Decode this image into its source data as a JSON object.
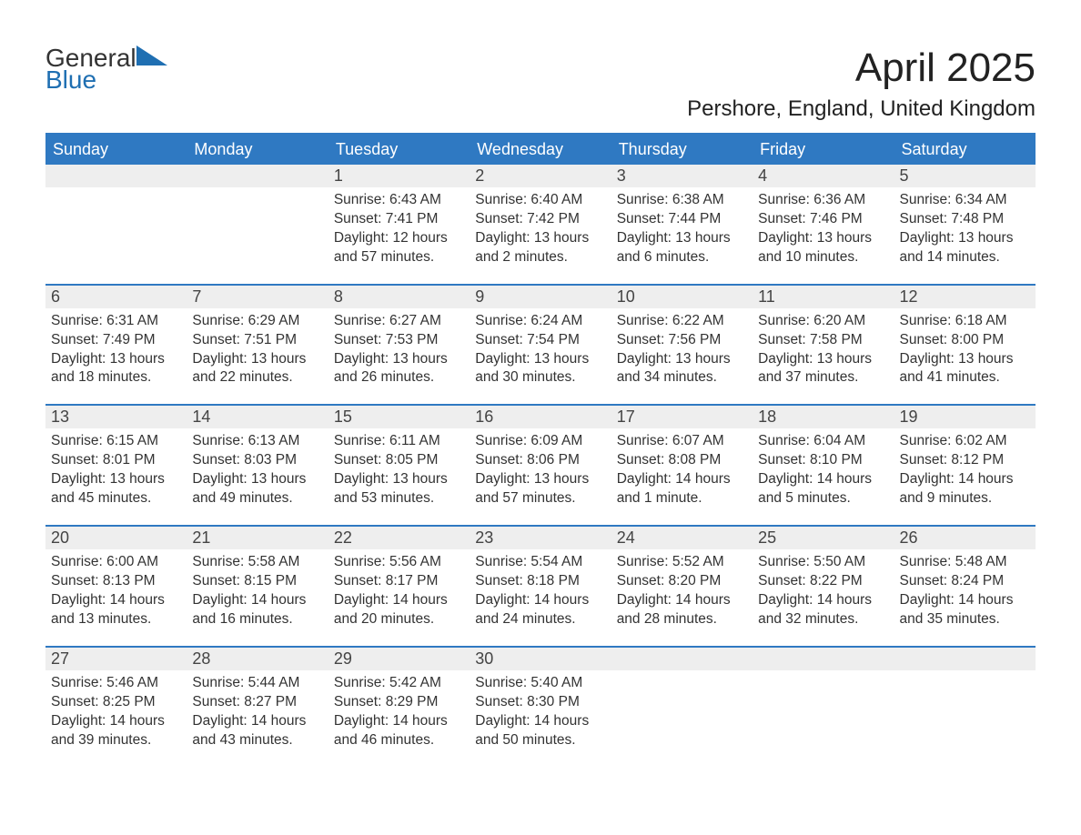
{
  "logo": {
    "line1": "General",
    "line2": "Blue"
  },
  "title": "April 2025",
  "location": "Pershore, England, United Kingdom",
  "colors": {
    "header_bg": "#2f79c2",
    "header_text": "#ffffff",
    "daynum_bg": "#eeeeee",
    "body_text": "#333333",
    "rule": "#2f79c2",
    "logo_accent": "#1f6fb2",
    "page_bg": "#ffffff"
  },
  "day_labels": [
    "Sunday",
    "Monday",
    "Tuesday",
    "Wednesday",
    "Thursday",
    "Friday",
    "Saturday"
  ],
  "weeks": [
    [
      {
        "n": "",
        "sunrise": "",
        "sunset": "",
        "daylight1": "",
        "daylight2": ""
      },
      {
        "n": "",
        "sunrise": "",
        "sunset": "",
        "daylight1": "",
        "daylight2": ""
      },
      {
        "n": "1",
        "sunrise": "Sunrise: 6:43 AM",
        "sunset": "Sunset: 7:41 PM",
        "daylight1": "Daylight: 12 hours",
        "daylight2": "and 57 minutes."
      },
      {
        "n": "2",
        "sunrise": "Sunrise: 6:40 AM",
        "sunset": "Sunset: 7:42 PM",
        "daylight1": "Daylight: 13 hours",
        "daylight2": "and 2 minutes."
      },
      {
        "n": "3",
        "sunrise": "Sunrise: 6:38 AM",
        "sunset": "Sunset: 7:44 PM",
        "daylight1": "Daylight: 13 hours",
        "daylight2": "and 6 minutes."
      },
      {
        "n": "4",
        "sunrise": "Sunrise: 6:36 AM",
        "sunset": "Sunset: 7:46 PM",
        "daylight1": "Daylight: 13 hours",
        "daylight2": "and 10 minutes."
      },
      {
        "n": "5",
        "sunrise": "Sunrise: 6:34 AM",
        "sunset": "Sunset: 7:48 PM",
        "daylight1": "Daylight: 13 hours",
        "daylight2": "and 14 minutes."
      }
    ],
    [
      {
        "n": "6",
        "sunrise": "Sunrise: 6:31 AM",
        "sunset": "Sunset: 7:49 PM",
        "daylight1": "Daylight: 13 hours",
        "daylight2": "and 18 minutes."
      },
      {
        "n": "7",
        "sunrise": "Sunrise: 6:29 AM",
        "sunset": "Sunset: 7:51 PM",
        "daylight1": "Daylight: 13 hours",
        "daylight2": "and 22 minutes."
      },
      {
        "n": "8",
        "sunrise": "Sunrise: 6:27 AM",
        "sunset": "Sunset: 7:53 PM",
        "daylight1": "Daylight: 13 hours",
        "daylight2": "and 26 minutes."
      },
      {
        "n": "9",
        "sunrise": "Sunrise: 6:24 AM",
        "sunset": "Sunset: 7:54 PM",
        "daylight1": "Daylight: 13 hours",
        "daylight2": "and 30 minutes."
      },
      {
        "n": "10",
        "sunrise": "Sunrise: 6:22 AM",
        "sunset": "Sunset: 7:56 PM",
        "daylight1": "Daylight: 13 hours",
        "daylight2": "and 34 minutes."
      },
      {
        "n": "11",
        "sunrise": "Sunrise: 6:20 AM",
        "sunset": "Sunset: 7:58 PM",
        "daylight1": "Daylight: 13 hours",
        "daylight2": "and 37 minutes."
      },
      {
        "n": "12",
        "sunrise": "Sunrise: 6:18 AM",
        "sunset": "Sunset: 8:00 PM",
        "daylight1": "Daylight: 13 hours",
        "daylight2": "and 41 minutes."
      }
    ],
    [
      {
        "n": "13",
        "sunrise": "Sunrise: 6:15 AM",
        "sunset": "Sunset: 8:01 PM",
        "daylight1": "Daylight: 13 hours",
        "daylight2": "and 45 minutes."
      },
      {
        "n": "14",
        "sunrise": "Sunrise: 6:13 AM",
        "sunset": "Sunset: 8:03 PM",
        "daylight1": "Daylight: 13 hours",
        "daylight2": "and 49 minutes."
      },
      {
        "n": "15",
        "sunrise": "Sunrise: 6:11 AM",
        "sunset": "Sunset: 8:05 PM",
        "daylight1": "Daylight: 13 hours",
        "daylight2": "and 53 minutes."
      },
      {
        "n": "16",
        "sunrise": "Sunrise: 6:09 AM",
        "sunset": "Sunset: 8:06 PM",
        "daylight1": "Daylight: 13 hours",
        "daylight2": "and 57 minutes."
      },
      {
        "n": "17",
        "sunrise": "Sunrise: 6:07 AM",
        "sunset": "Sunset: 8:08 PM",
        "daylight1": "Daylight: 14 hours",
        "daylight2": "and 1 minute."
      },
      {
        "n": "18",
        "sunrise": "Sunrise: 6:04 AM",
        "sunset": "Sunset: 8:10 PM",
        "daylight1": "Daylight: 14 hours",
        "daylight2": "and 5 minutes."
      },
      {
        "n": "19",
        "sunrise": "Sunrise: 6:02 AM",
        "sunset": "Sunset: 8:12 PM",
        "daylight1": "Daylight: 14 hours",
        "daylight2": "and 9 minutes."
      }
    ],
    [
      {
        "n": "20",
        "sunrise": "Sunrise: 6:00 AM",
        "sunset": "Sunset: 8:13 PM",
        "daylight1": "Daylight: 14 hours",
        "daylight2": "and 13 minutes."
      },
      {
        "n": "21",
        "sunrise": "Sunrise: 5:58 AM",
        "sunset": "Sunset: 8:15 PM",
        "daylight1": "Daylight: 14 hours",
        "daylight2": "and 16 minutes."
      },
      {
        "n": "22",
        "sunrise": "Sunrise: 5:56 AM",
        "sunset": "Sunset: 8:17 PM",
        "daylight1": "Daylight: 14 hours",
        "daylight2": "and 20 minutes."
      },
      {
        "n": "23",
        "sunrise": "Sunrise: 5:54 AM",
        "sunset": "Sunset: 8:18 PM",
        "daylight1": "Daylight: 14 hours",
        "daylight2": "and 24 minutes."
      },
      {
        "n": "24",
        "sunrise": "Sunrise: 5:52 AM",
        "sunset": "Sunset: 8:20 PM",
        "daylight1": "Daylight: 14 hours",
        "daylight2": "and 28 minutes."
      },
      {
        "n": "25",
        "sunrise": "Sunrise: 5:50 AM",
        "sunset": "Sunset: 8:22 PM",
        "daylight1": "Daylight: 14 hours",
        "daylight2": "and 32 minutes."
      },
      {
        "n": "26",
        "sunrise": "Sunrise: 5:48 AM",
        "sunset": "Sunset: 8:24 PM",
        "daylight1": "Daylight: 14 hours",
        "daylight2": "and 35 minutes."
      }
    ],
    [
      {
        "n": "27",
        "sunrise": "Sunrise: 5:46 AM",
        "sunset": "Sunset: 8:25 PM",
        "daylight1": "Daylight: 14 hours",
        "daylight2": "and 39 minutes."
      },
      {
        "n": "28",
        "sunrise": "Sunrise: 5:44 AM",
        "sunset": "Sunset: 8:27 PM",
        "daylight1": "Daylight: 14 hours",
        "daylight2": "and 43 minutes."
      },
      {
        "n": "29",
        "sunrise": "Sunrise: 5:42 AM",
        "sunset": "Sunset: 8:29 PM",
        "daylight1": "Daylight: 14 hours",
        "daylight2": "and 46 minutes."
      },
      {
        "n": "30",
        "sunrise": "Sunrise: 5:40 AM",
        "sunset": "Sunset: 8:30 PM",
        "daylight1": "Daylight: 14 hours",
        "daylight2": "and 50 minutes."
      },
      {
        "n": "",
        "sunrise": "",
        "sunset": "",
        "daylight1": "",
        "daylight2": ""
      },
      {
        "n": "",
        "sunrise": "",
        "sunset": "",
        "daylight1": "",
        "daylight2": ""
      },
      {
        "n": "",
        "sunrise": "",
        "sunset": "",
        "daylight1": "",
        "daylight2": ""
      }
    ]
  ]
}
